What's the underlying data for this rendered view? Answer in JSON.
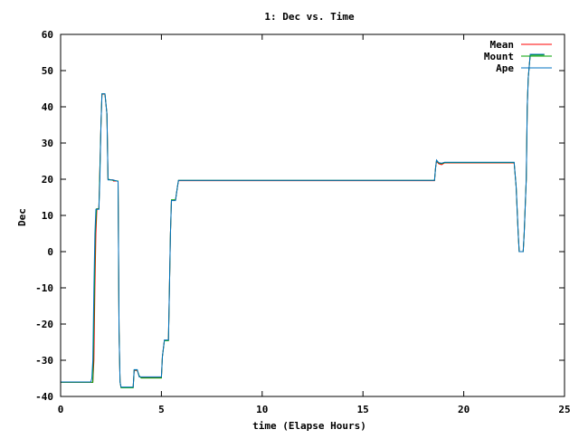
{
  "chart_data": {
    "type": "line",
    "title": "1: Dec vs. Time",
    "xlabel": "time (Elapse Hours)",
    "ylabel": "Dec",
    "xlim": [
      0,
      25
    ],
    "ylim": [
      -40,
      60
    ],
    "xticks": [
      0,
      5,
      10,
      15,
      20,
      25
    ],
    "yticks": [
      -40,
      -30,
      -20,
      -10,
      0,
      10,
      20,
      30,
      40,
      50,
      60
    ],
    "grid": false,
    "legend_position": "top-right",
    "series": [
      {
        "name": "Mean",
        "color": "#ff0000",
        "points": [
          [
            0,
            -36.1
          ],
          [
            1.0,
            -36.1
          ],
          [
            1.6,
            -36.1
          ],
          [
            1.65,
            -30
          ],
          [
            1.7,
            -10
          ],
          [
            1.75,
            5
          ],
          [
            1.8,
            11.8
          ],
          [
            1.9,
            11.8
          ],
          [
            2.0,
            35
          ],
          [
            2.05,
            43.5
          ],
          [
            2.2,
            43.5
          ],
          [
            2.3,
            38
          ],
          [
            2.35,
            20
          ],
          [
            2.5,
            19.8
          ],
          [
            2.6,
            19.8
          ],
          [
            2.62,
            19.5
          ],
          [
            2.85,
            19.5
          ],
          [
            2.9,
            -22
          ],
          [
            2.95,
            -36
          ],
          [
            3.0,
            -37.5
          ],
          [
            3.6,
            -37.5
          ],
          [
            3.65,
            -32.8
          ],
          [
            3.8,
            -32.8
          ],
          [
            3.9,
            -34.5
          ],
          [
            4.0,
            -34.8
          ],
          [
            5.0,
            -34.8
          ],
          [
            5.05,
            -29
          ],
          [
            5.15,
            -24.5
          ],
          [
            5.35,
            -24.5
          ],
          [
            5.4,
            -10
          ],
          [
            5.45,
            5
          ],
          [
            5.5,
            14.2
          ],
          [
            5.7,
            14.2
          ],
          [
            5.8,
            18
          ],
          [
            5.85,
            19.6
          ],
          [
            18.55,
            19.6
          ],
          [
            18.6,
            23
          ],
          [
            18.65,
            25
          ],
          [
            18.75,
            24.3
          ],
          [
            18.9,
            24
          ],
          [
            19.05,
            24.5
          ],
          [
            22.5,
            24.5
          ],
          [
            22.6,
            18
          ],
          [
            22.7,
            5
          ],
          [
            22.75,
            0
          ],
          [
            22.95,
            0
          ],
          [
            23.0,
            5
          ],
          [
            23.1,
            20
          ],
          [
            23.15,
            40
          ],
          [
            23.2,
            48
          ],
          [
            23.3,
            54.5
          ],
          [
            24.0,
            54.5
          ]
        ]
      },
      {
        "name": "Mount",
        "color": "#00a000",
        "points": [
          [
            0,
            -36.1
          ],
          [
            1.6,
            -36.1
          ],
          [
            1.62,
            -30
          ],
          [
            1.68,
            -10
          ],
          [
            1.72,
            5
          ],
          [
            1.78,
            11.8
          ],
          [
            1.9,
            11.8
          ],
          [
            2.0,
            35
          ],
          [
            2.05,
            43.6
          ],
          [
            2.2,
            43.6
          ],
          [
            2.3,
            38
          ],
          [
            2.35,
            20
          ],
          [
            2.6,
            19.7
          ],
          [
            2.85,
            19.5
          ],
          [
            2.9,
            -22
          ],
          [
            2.95,
            -36
          ],
          [
            3.0,
            -37.6
          ],
          [
            3.6,
            -37.6
          ],
          [
            3.65,
            -32.7
          ],
          [
            3.8,
            -32.7
          ],
          [
            3.9,
            -34.3
          ],
          [
            4.0,
            -34.9
          ],
          [
            5.0,
            -34.9
          ],
          [
            5.05,
            -29
          ],
          [
            5.15,
            -24.6
          ],
          [
            5.35,
            -24.6
          ],
          [
            5.4,
            -10
          ],
          [
            5.45,
            5
          ],
          [
            5.5,
            14.3
          ],
          [
            5.7,
            14.3
          ],
          [
            5.8,
            18
          ],
          [
            5.85,
            19.7
          ],
          [
            18.55,
            19.7
          ],
          [
            18.6,
            23
          ],
          [
            18.65,
            25.2
          ],
          [
            18.75,
            24.5
          ],
          [
            18.9,
            24.3
          ],
          [
            19.05,
            24.6
          ],
          [
            22.5,
            24.6
          ],
          [
            22.6,
            18
          ],
          [
            22.7,
            5
          ],
          [
            22.75,
            0
          ],
          [
            22.95,
            0
          ],
          [
            23.0,
            5
          ],
          [
            23.1,
            20
          ],
          [
            23.15,
            40
          ],
          [
            23.2,
            48
          ],
          [
            23.3,
            54.3
          ],
          [
            24.0,
            54.3
          ]
        ]
      },
      {
        "name": "Ape",
        "color": "#0070c0",
        "points": [
          [
            0,
            -36.0
          ],
          [
            1.5,
            -36.0
          ],
          [
            1.55,
            -35
          ],
          [
            1.6,
            -30
          ],
          [
            1.65,
            -10
          ],
          [
            1.7,
            5
          ],
          [
            1.75,
            11.7
          ],
          [
            1.9,
            11.7
          ],
          [
            1.95,
            20
          ],
          [
            2.0,
            35
          ],
          [
            2.05,
            43.6
          ],
          [
            2.2,
            43.6
          ],
          [
            2.3,
            38
          ],
          [
            2.35,
            19.8
          ],
          [
            2.6,
            19.8
          ],
          [
            2.85,
            19.4
          ],
          [
            2.9,
            -22
          ],
          [
            2.95,
            -36
          ],
          [
            3.0,
            -37.4
          ],
          [
            3.6,
            -37.4
          ],
          [
            3.65,
            -32.6
          ],
          [
            3.8,
            -32.6
          ],
          [
            3.9,
            -34.6
          ],
          [
            4.0,
            -34.6
          ],
          [
            5.0,
            -34.6
          ],
          [
            5.05,
            -29
          ],
          [
            5.15,
            -24.4
          ],
          [
            5.35,
            -24.4
          ],
          [
            5.4,
            -10
          ],
          [
            5.45,
            5
          ],
          [
            5.5,
            14.1
          ],
          [
            5.7,
            14.1
          ],
          [
            5.8,
            18
          ],
          [
            5.85,
            19.7
          ],
          [
            18.55,
            19.7
          ],
          [
            18.6,
            23
          ],
          [
            18.65,
            25.3
          ],
          [
            18.75,
            24.6
          ],
          [
            18.9,
            24.4
          ],
          [
            19.05,
            24.7
          ],
          [
            22.5,
            24.7
          ],
          [
            22.6,
            18
          ],
          [
            22.7,
            5
          ],
          [
            22.75,
            0
          ],
          [
            22.95,
            0
          ],
          [
            23.0,
            5
          ],
          [
            23.1,
            20
          ],
          [
            23.15,
            40
          ],
          [
            23.2,
            48
          ],
          [
            23.3,
            54.5
          ],
          [
            24.0,
            54.5
          ]
        ]
      }
    ]
  }
}
